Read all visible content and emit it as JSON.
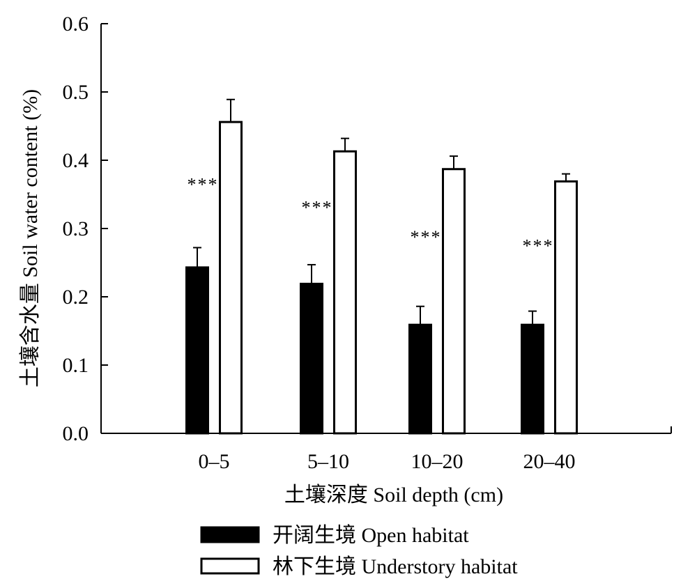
{
  "chart_data": {
    "type": "bar",
    "title": "",
    "xlabel": "土壤深度  Soil depth (cm)",
    "ylabel": "土壤含水量 Soil water content (%)",
    "ylim": [
      0,
      0.6
    ],
    "yticks": [
      "0.0",
      "0.1",
      "0.2",
      "0.3",
      "0.4",
      "0.5",
      "0.6"
    ],
    "categories": [
      "0–5",
      "5–10",
      "10–20",
      "20–40"
    ],
    "series": [
      {
        "name": "开阔生境 Open habitat",
        "color": "#000000",
        "values": [
          0.243,
          0.219,
          0.159,
          0.159
        ],
        "errors": [
          0.029,
          0.028,
          0.027,
          0.02
        ]
      },
      {
        "name": "林下生境 Understory habitat",
        "color": "#ffffff",
        "values": [
          0.456,
          0.413,
          0.387,
          0.369
        ],
        "errors": [
          0.033,
          0.019,
          0.019,
          0.011
        ]
      }
    ],
    "significance": [
      "***",
      "***",
      "***",
      "***"
    ],
    "legend_position": "bottom",
    "grid": false
  }
}
